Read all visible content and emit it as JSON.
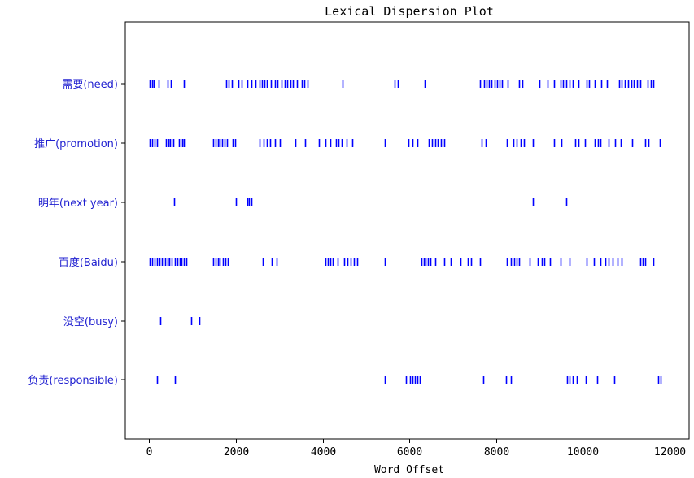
{
  "chart_data": {
    "type": "scatter",
    "title": "Lexical Dispersion Plot",
    "xlabel": "Word Offset",
    "ylabel": "",
    "xlim": [
      -550,
      12450
    ],
    "x_ticks": [
      0,
      2000,
      4000,
      6000,
      8000,
      10000,
      12000
    ],
    "grid": false,
    "legend": "none",
    "marker": "|",
    "color": "#0000ff",
    "series": [
      {
        "name": "需要(need)",
        "x": [
          20,
          60,
          110,
          220,
          430,
          500,
          800,
          1780,
          1840,
          1900,
          2060,
          2130,
          2260,
          2360,
          2450,
          2540,
          2600,
          2650,
          2710,
          2800,
          2900,
          2960,
          3050,
          3120,
          3180,
          3250,
          3310,
          3400,
          3520,
          3580,
          3650,
          4450,
          5650,
          5740,
          6350,
          7620,
          7720,
          7780,
          7840,
          7900,
          7960,
          8020,
          8080,
          8140,
          8270,
          8530,
          8610,
          9000,
          9180,
          9330,
          9480,
          9550,
          9620,
          9690,
          9760,
          9890,
          10080,
          10150,
          10280,
          10430,
          10560,
          10830,
          10900,
          10970,
          11040,
          11110,
          11180,
          11250,
          11330,
          11500,
          11560,
          11630
        ]
      },
      {
        "name": "推广(promotion)",
        "x": [
          20,
          70,
          130,
          190,
          380,
          440,
          490,
          560,
          690,
          760,
          810,
          1480,
          1530,
          1580,
          1630,
          1680,
          1740,
          1790,
          1920,
          1980,
          2550,
          2630,
          2710,
          2790,
          2900,
          3020,
          3380,
          3600,
          3920,
          4060,
          4180,
          4300,
          4360,
          4440,
          4560,
          4680,
          5430,
          5980,
          6070,
          6180,
          6440,
          6520,
          6590,
          6660,
          6730,
          6800,
          7670,
          7760,
          8250,
          8400,
          8480,
          8560,
          8650,
          8850,
          9330,
          9510,
          9830,
          9900,
          10050,
          10280,
          10340,
          10400,
          10600,
          10750,
          10880,
          11140,
          11430,
          11510,
          11780
        ]
      },
      {
        "name": "明年(next year)",
        "x": [
          580,
          2000,
          2260,
          2310,
          2360,
          8840,
          9620
        ]
      },
      {
        "name": "百度(Baidu)",
        "x": [
          20,
          70,
          120,
          180,
          230,
          300,
          360,
          420,
          470,
          520,
          600,
          650,
          700,
          750,
          800,
          850,
          1480,
          1530,
          1580,
          1630,
          1700,
          1760,
          1820,
          2620,
          2830,
          2930,
          4070,
          4120,
          4180,
          4240,
          4350,
          4500,
          4570,
          4650,
          4720,
          4800,
          5440,
          6280,
          6330,
          6380,
          6430,
          6480,
          6600,
          6810,
          6960,
          7180,
          7340,
          7420,
          7630,
          8250,
          8350,
          8410,
          8470,
          8530,
          8780,
          8960,
          9050,
          9110,
          9250,
          9480,
          9700,
          10090,
          10260,
          10410,
          10510,
          10590,
          10680,
          10800,
          10890,
          11320,
          11380,
          11440,
          11620
        ]
      },
      {
        "name": "没空(busy)",
        "x": [
          260,
          970,
          1150
        ]
      },
      {
        "name": "负责(responsible)",
        "x": [
          190,
          600,
          5430,
          5930,
          6020,
          6080,
          6130,
          6180,
          6240,
          7710,
          8220,
          8340,
          9630,
          9700,
          9760,
          9870,
          10070,
          10330,
          10720,
          11740,
          11800
        ]
      }
    ]
  }
}
